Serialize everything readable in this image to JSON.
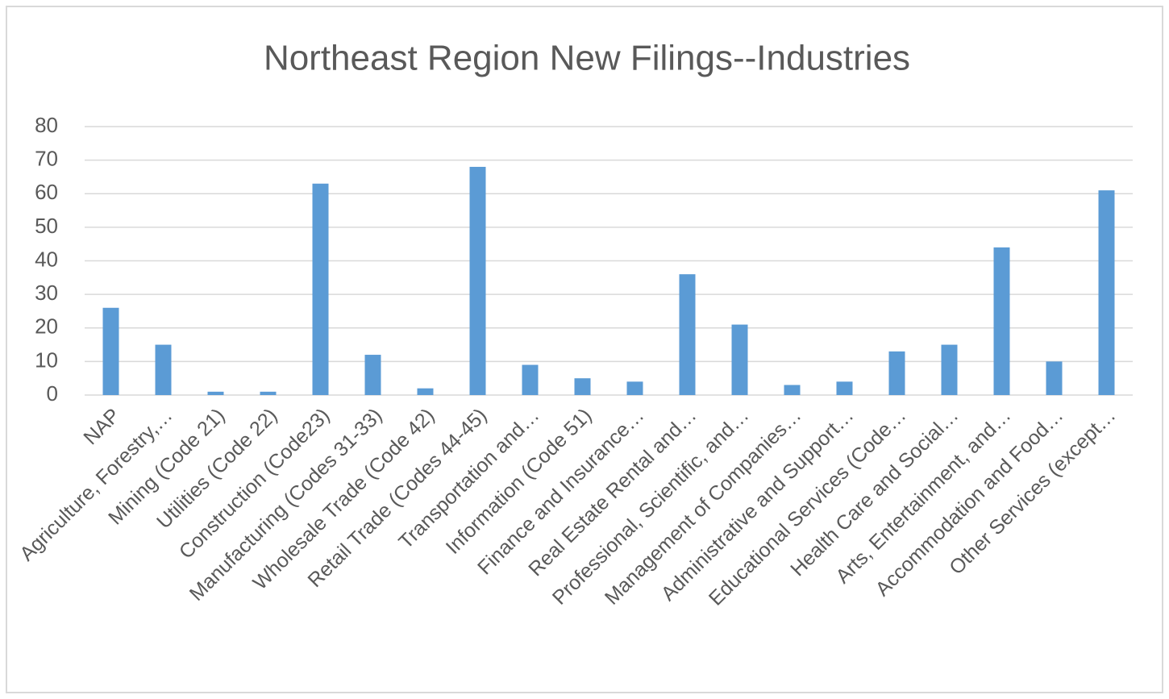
{
  "chart_data": {
    "type": "bar",
    "title": "Northeast Region New Filings--Industries",
    "categories": [
      "NAP",
      "Agriculture, Forestry,…",
      "Mining (Code 21)",
      "Utilities (Code 22)",
      "Construction (Code23)",
      "Manufacturing (Codes 31-33)",
      "Wholesale Trade (Code 42)",
      "Retail Trade (Codes 44-45)",
      "Transportation and…",
      "Information (Code 51)",
      "Finance and Insurance…",
      "Real Estate Rental and…",
      "Professional, Scientific, and…",
      "Management of Companies…",
      "Administrative and Support…",
      "Educational Services (Code…",
      "Health Care and Social…",
      "Arts, Entertainment, and…",
      "Accommodation and Food…",
      "Other Services (except…"
    ],
    "values": [
      26,
      15,
      1,
      1,
      63,
      12,
      2,
      68,
      9,
      5,
      4,
      36,
      21,
      3,
      4,
      13,
      15,
      44,
      10,
      61
    ],
    "color": "#5b9bd5",
    "ylim": [
      0,
      80
    ],
    "yticks": [
      0,
      10,
      20,
      30,
      40,
      50,
      60,
      70,
      80
    ],
    "grid": true
  }
}
